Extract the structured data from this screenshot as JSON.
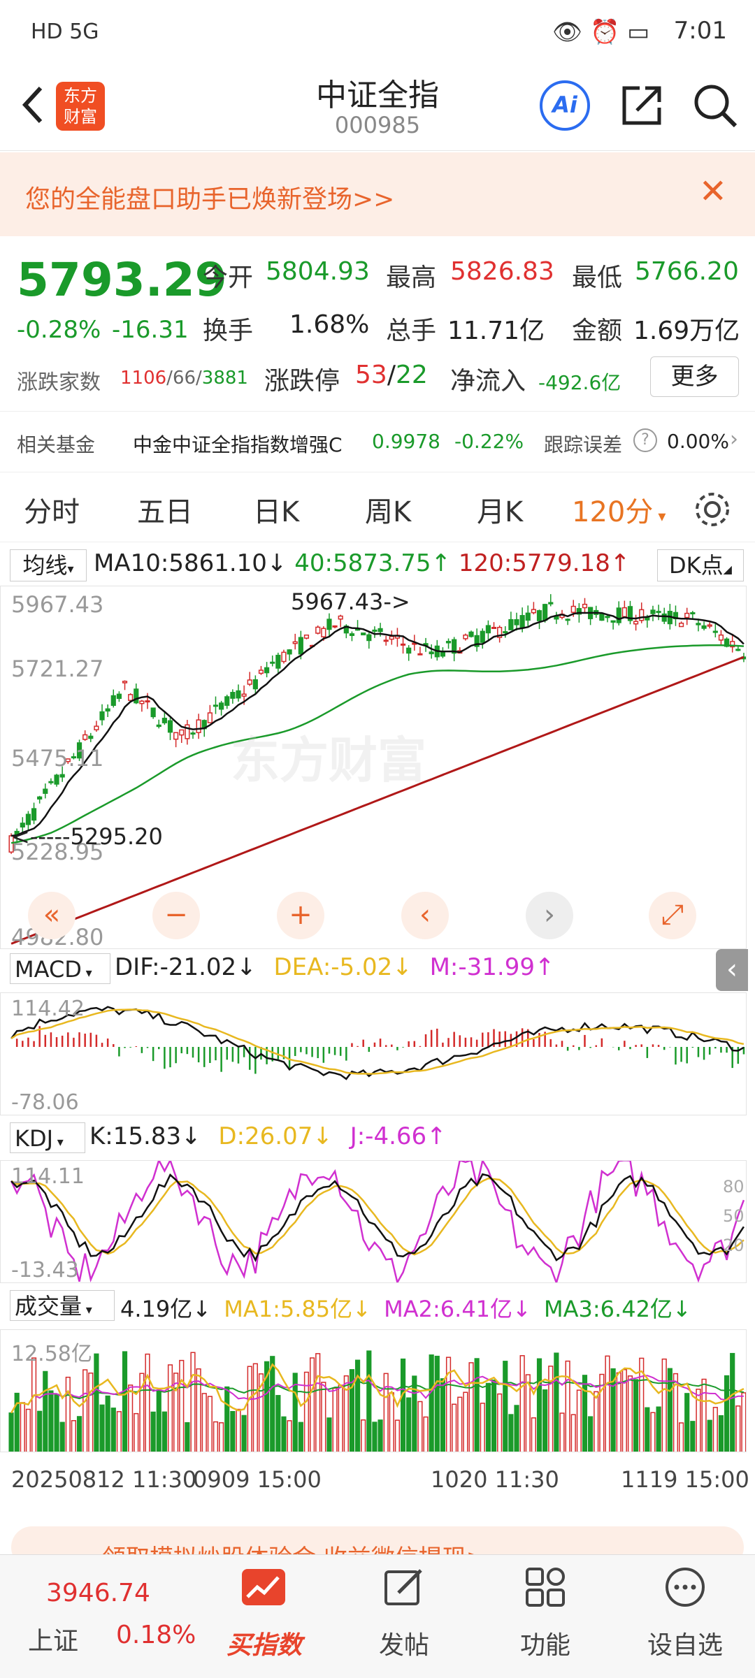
{
  "status": {
    "signal": "HD 5G",
    "time": "7:01"
  },
  "nav": {
    "title": "中证全指",
    "code": "000985",
    "logo_line1": "东方",
    "logo_line2": "财富",
    "ai_label": "Ai"
  },
  "banner": {
    "text": "您的全能盘口助手已焕新登场>>"
  },
  "quote": {
    "price": "5793.29",
    "pct": "-0.28%",
    "change": "-16.31",
    "open_label": "今开",
    "open": "5804.93",
    "high_label": "最高",
    "high": "5826.83",
    "low_label": "最低",
    "low": "5766.20",
    "turnover_label": "换手",
    "turnover": "1.68%",
    "volume_label": "总手",
    "volume": "11.71亿",
    "amount_label": "金额",
    "amount": "1.69万亿",
    "updown_label": "涨跌家数",
    "up": "1106",
    "flat": "66",
    "down": "3881",
    "limit_label": "涨跌停",
    "limit_up": "53",
    "limit_down": "22",
    "netflow_label": "净流入",
    "netflow": "-492.6亿",
    "more_label": "更多"
  },
  "fund": {
    "label": "相关基金",
    "name": "中金中证全指指数增强C",
    "nav": "0.9978",
    "pct": "-0.22%",
    "err_label": "跟踪误差",
    "err": "0.00%"
  },
  "tabs": [
    "分时",
    "五日",
    "日K",
    "周K",
    "月K",
    "120分"
  ],
  "main_chart": {
    "indicator": "均线",
    "ma10": "MA10:5861.10",
    "ma40": "40:5873.75",
    "ma120": "120:5779.18",
    "dk_label": "DK点",
    "y_labels": [
      "5967.43",
      "5721.27",
      "5475.11",
      "5228.95",
      "4982.80"
    ],
    "max_label": "5967.43->",
    "min_label": "<-----5295.20",
    "watermark": "东方财富"
  },
  "macd": {
    "name": "MACD",
    "dif": "DIF:-21.02",
    "dea": "DEA:-5.02",
    "m": "M:-31.99",
    "top": "114.42",
    "bottom": "-78.06"
  },
  "kdj": {
    "name": "KDJ",
    "k": "K:15.83",
    "d": "D:26.07",
    "j": "J:-4.66",
    "top": "114.11",
    "bottom": "-13.43",
    "lv80": "80",
    "lv50": "50",
    "lv20": "20"
  },
  "vol": {
    "name": "成交量",
    "v": "4.19亿",
    "ma1": "MA1:5.85亿",
    "ma2": "MA2:6.41亿",
    "ma3": "MA3:6.42亿",
    "top": "12.58亿"
  },
  "x_axis": {
    "a": "20250812 11:30",
    "b": "0909 15:00",
    "c": "1020 11:30",
    "d": "1119 15:00"
  },
  "promo": {
    "text": "领取模拟炒股体验金 收益微信提现>"
  },
  "bottom": {
    "sh_price": "3946.74",
    "sh_label": "上证",
    "sh_pct": "0.18%",
    "buy": "买指数",
    "post": "发帖",
    "func": "功能",
    "fav": "设自选"
  }
}
